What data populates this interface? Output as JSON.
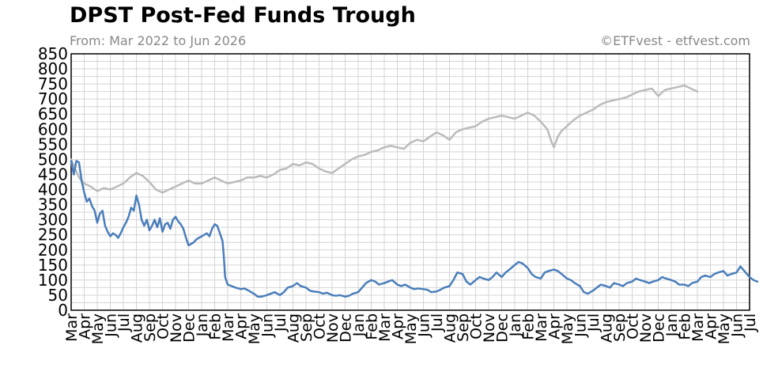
{
  "chart_data": {
    "type": "line",
    "title": "DPST Post-Fed Funds Trough",
    "subtitle": "From: Mar 2022 to Jun 2026",
    "credit": "©ETFvest - etfvest.com",
    "ylim": [
      0,
      850
    ],
    "yticks": [
      0,
      50,
      100,
      150,
      200,
      250,
      300,
      350,
      400,
      450,
      500,
      550,
      600,
      650,
      700,
      750,
      800,
      850
    ],
    "xlim": [
      0,
      52
    ],
    "xtick_labels": [
      "Mar",
      "Apr",
      "May",
      "Jun",
      "Jul",
      "Aug",
      "Sep",
      "Oct",
      "Nov",
      "Dec",
      "Jan",
      "Feb",
      "Mar",
      "Apr",
      "May",
      "Jun",
      "Jul",
      "Aug",
      "Sep",
      "Oct",
      "Nov",
      "Dec",
      "Jan",
      "Feb",
      "Mar",
      "Apr",
      "May",
      "Jun",
      "Jul",
      "Aug",
      "Sep",
      "Oct",
      "Nov",
      "Dec",
      "Jan",
      "Feb",
      "Mar",
      "Apr",
      "May",
      "Jun",
      "Jul",
      "Aug",
      "Sep",
      "Oct",
      "Nov",
      "Dec",
      "Jan",
      "Feb",
      "Mar",
      "Apr",
      "May",
      "Jun",
      "Jul"
    ],
    "grid": true,
    "series": [
      {
        "name": "",
        "color": "#bbbbbb",
        "points": [
          [
            0,
            500
          ],
          [
            0.3,
            470
          ],
          [
            0.6,
            440
          ],
          [
            1,
            420
          ],
          [
            1.5,
            410
          ],
          [
            2,
            395
          ],
          [
            2.5,
            405
          ],
          [
            3,
            400
          ],
          [
            3.5,
            410
          ],
          [
            4,
            420
          ],
          [
            4.5,
            440
          ],
          [
            5,
            455
          ],
          [
            5.5,
            445
          ],
          [
            6,
            425
          ],
          [
            6.5,
            400
          ],
          [
            7,
            390
          ],
          [
            7.5,
            400
          ],
          [
            8,
            410
          ],
          [
            8.5,
            420
          ],
          [
            9,
            430
          ],
          [
            9.5,
            420
          ],
          [
            10,
            420
          ],
          [
            10.5,
            430
          ],
          [
            11,
            440
          ],
          [
            11.5,
            430
          ],
          [
            12,
            420
          ],
          [
            12.5,
            425
          ],
          [
            13,
            430
          ],
          [
            13.5,
            440
          ],
          [
            14,
            440
          ],
          [
            14.5,
            445
          ],
          [
            15,
            440
          ],
          [
            15.5,
            450
          ],
          [
            16,
            465
          ],
          [
            16.5,
            470
          ],
          [
            17,
            485
          ],
          [
            17.5,
            480
          ],
          [
            18,
            490
          ],
          [
            18.5,
            485
          ],
          [
            19,
            470
          ],
          [
            19.5,
            460
          ],
          [
            20,
            455
          ],
          [
            20.5,
            470
          ],
          [
            21,
            485
          ],
          [
            21.5,
            500
          ],
          [
            22,
            510
          ],
          [
            22.5,
            515
          ],
          [
            23,
            525
          ],
          [
            23.5,
            530
          ],
          [
            24,
            540
          ],
          [
            24.5,
            545
          ],
          [
            25,
            540
          ],
          [
            25.5,
            535
          ],
          [
            26,
            555
          ],
          [
            26.5,
            565
          ],
          [
            27,
            560
          ],
          [
            27.5,
            575
          ],
          [
            28,
            590
          ],
          [
            28.5,
            580
          ],
          [
            29,
            565
          ],
          [
            29.5,
            590
          ],
          [
            30,
            600
          ],
          [
            30.5,
            605
          ],
          [
            31,
            610
          ],
          [
            31.5,
            625
          ],
          [
            32,
            635
          ],
          [
            32.5,
            640
          ],
          [
            33,
            645
          ],
          [
            33.5,
            640
          ],
          [
            34,
            635
          ],
          [
            34.5,
            645
          ],
          [
            35,
            655
          ],
          [
            35.5,
            645
          ],
          [
            36,
            625
          ],
          [
            36.5,
            600
          ],
          [
            36.8,
            560
          ],
          [
            37,
            540
          ],
          [
            37.3,
            575
          ],
          [
            37.6,
            595
          ],
          [
            38,
            610
          ],
          [
            38.5,
            630
          ],
          [
            39,
            645
          ],
          [
            39.5,
            655
          ],
          [
            40,
            665
          ],
          [
            40.5,
            680
          ],
          [
            41,
            690
          ],
          [
            41.5,
            695
          ],
          [
            42,
            700
          ],
          [
            42.5,
            705
          ],
          [
            43,
            715
          ],
          [
            43.5,
            725
          ],
          [
            44,
            730
          ],
          [
            44.5,
            735
          ],
          [
            45,
            710
          ],
          [
            45.5,
            730
          ],
          [
            46,
            735
          ],
          [
            46.5,
            740
          ],
          [
            47,
            745
          ],
          [
            47.5,
            735
          ],
          [
            48,
            725
          ]
        ]
      },
      {
        "name": "",
        "color": "#4a7ebb",
        "points": [
          [
            0,
            495
          ],
          [
            0.2,
            450
          ],
          [
            0.4,
            495
          ],
          [
            0.6,
            490
          ],
          [
            0.8,
            430
          ],
          [
            1,
            390
          ],
          [
            1.2,
            360
          ],
          [
            1.4,
            370
          ],
          [
            1.6,
            345
          ],
          [
            1.8,
            330
          ],
          [
            2,
            290
          ],
          [
            2.2,
            320
          ],
          [
            2.4,
            330
          ],
          [
            2.6,
            280
          ],
          [
            2.8,
            260
          ],
          [
            3,
            245
          ],
          [
            3.2,
            255
          ],
          [
            3.4,
            250
          ],
          [
            3.6,
            240
          ],
          [
            3.8,
            255
          ],
          [
            4,
            275
          ],
          [
            4.2,
            290
          ],
          [
            4.4,
            310
          ],
          [
            4.6,
            340
          ],
          [
            4.8,
            330
          ],
          [
            5,
            380
          ],
          [
            5.2,
            350
          ],
          [
            5.4,
            300
          ],
          [
            5.6,
            280
          ],
          [
            5.8,
            300
          ],
          [
            6,
            265
          ],
          [
            6.2,
            280
          ],
          [
            6.4,
            300
          ],
          [
            6.6,
            275
          ],
          [
            6.8,
            305
          ],
          [
            7,
            260
          ],
          [
            7.2,
            285
          ],
          [
            7.4,
            290
          ],
          [
            7.6,
            270
          ],
          [
            7.8,
            300
          ],
          [
            8,
            310
          ],
          [
            8.2,
            295
          ],
          [
            8.4,
            285
          ],
          [
            8.6,
            270
          ],
          [
            8.8,
            240
          ],
          [
            9,
            215
          ],
          [
            9.2,
            220
          ],
          [
            9.4,
            225
          ],
          [
            9.6,
            235
          ],
          [
            9.8,
            240
          ],
          [
            10,
            245
          ],
          [
            10.2,
            250
          ],
          [
            10.4,
            255
          ],
          [
            10.6,
            245
          ],
          [
            10.8,
            270
          ],
          [
            11,
            285
          ],
          [
            11.2,
            280
          ],
          [
            11.4,
            255
          ],
          [
            11.6,
            230
          ],
          [
            11.7,
            180
          ],
          [
            11.8,
            110
          ],
          [
            12,
            85
          ],
          [
            12.3,
            80
          ],
          [
            12.6,
            75
          ],
          [
            13,
            70
          ],
          [
            13.3,
            72
          ],
          [
            13.6,
            65
          ],
          [
            14,
            55
          ],
          [
            14.3,
            45
          ],
          [
            14.6,
            45
          ],
          [
            15,
            50
          ],
          [
            15.3,
            55
          ],
          [
            15.6,
            60
          ],
          [
            16,
            50
          ],
          [
            16.3,
            60
          ],
          [
            16.6,
            75
          ],
          [
            17,
            80
          ],
          [
            17.3,
            90
          ],
          [
            17.6,
            80
          ],
          [
            18,
            75
          ],
          [
            18.3,
            65
          ],
          [
            18.6,
            62
          ],
          [
            19,
            60
          ],
          [
            19.3,
            55
          ],
          [
            19.6,
            58
          ],
          [
            20,
            50
          ],
          [
            20.3,
            48
          ],
          [
            20.6,
            50
          ],
          [
            21,
            45
          ],
          [
            21.3,
            48
          ],
          [
            21.6,
            55
          ],
          [
            22,
            60
          ],
          [
            22.3,
            75
          ],
          [
            22.6,
            90
          ],
          [
            23,
            100
          ],
          [
            23.3,
            95
          ],
          [
            23.6,
            85
          ],
          [
            24,
            90
          ],
          [
            24.3,
            95
          ],
          [
            24.6,
            100
          ],
          [
            25,
            85
          ],
          [
            25.3,
            80
          ],
          [
            25.6,
            85
          ],
          [
            26,
            75
          ],
          [
            26.3,
            70
          ],
          [
            26.6,
            72
          ],
          [
            27,
            70
          ],
          [
            27.3,
            68
          ],
          [
            27.6,
            60
          ],
          [
            28,
            62
          ],
          [
            28.3,
            68
          ],
          [
            28.6,
            75
          ],
          [
            29,
            80
          ],
          [
            29.3,
            100
          ],
          [
            29.6,
            125
          ],
          [
            30,
            120
          ],
          [
            30.3,
            95
          ],
          [
            30.6,
            85
          ],
          [
            31,
            100
          ],
          [
            31.3,
            110
          ],
          [
            31.6,
            105
          ],
          [
            32,
            100
          ],
          [
            32.3,
            110
          ],
          [
            32.6,
            125
          ],
          [
            33,
            110
          ],
          [
            33.3,
            125
          ],
          [
            33.6,
            135
          ],
          [
            34,
            150
          ],
          [
            34.3,
            160
          ],
          [
            34.6,
            155
          ],
          [
            35,
            140
          ],
          [
            35.3,
            120
          ],
          [
            35.6,
            110
          ],
          [
            36,
            105
          ],
          [
            36.3,
            125
          ],
          [
            36.6,
            130
          ],
          [
            37,
            135
          ],
          [
            37.3,
            130
          ],
          [
            37.6,
            120
          ],
          [
            38,
            105
          ],
          [
            38.3,
            100
          ],
          [
            38.6,
            90
          ],
          [
            39,
            80
          ],
          [
            39.3,
            60
          ],
          [
            39.6,
            55
          ],
          [
            40,
            65
          ],
          [
            40.3,
            75
          ],
          [
            40.6,
            85
          ],
          [
            41,
            80
          ],
          [
            41.3,
            75
          ],
          [
            41.6,
            90
          ],
          [
            42,
            85
          ],
          [
            42.3,
            80
          ],
          [
            42.6,
            90
          ],
          [
            43,
            95
          ],
          [
            43.3,
            105
          ],
          [
            43.6,
            100
          ],
          [
            44,
            95
          ],
          [
            44.3,
            90
          ],
          [
            44.6,
            95
          ],
          [
            45,
            100
          ],
          [
            45.3,
            110
          ],
          [
            45.6,
            105
          ],
          [
            46,
            100
          ],
          [
            46.3,
            95
          ],
          [
            46.6,
            85
          ],
          [
            47,
            85
          ],
          [
            47.3,
            80
          ],
          [
            47.6,
            90
          ],
          [
            48,
            95
          ],
          [
            48.3,
            110
          ],
          [
            48.6,
            115
          ],
          [
            49,
            110
          ],
          [
            49.3,
            120
          ],
          [
            49.6,
            125
          ],
          [
            50,
            130
          ],
          [
            50.3,
            115
          ],
          [
            50.6,
            120
          ],
          [
            51,
            125
          ],
          [
            51.3,
            145
          ],
          [
            51.6,
            130
          ],
          [
            52,
            110
          ],
          [
            52.3,
            100
          ],
          [
            52.6,
            95
          ]
        ]
      }
    ]
  }
}
